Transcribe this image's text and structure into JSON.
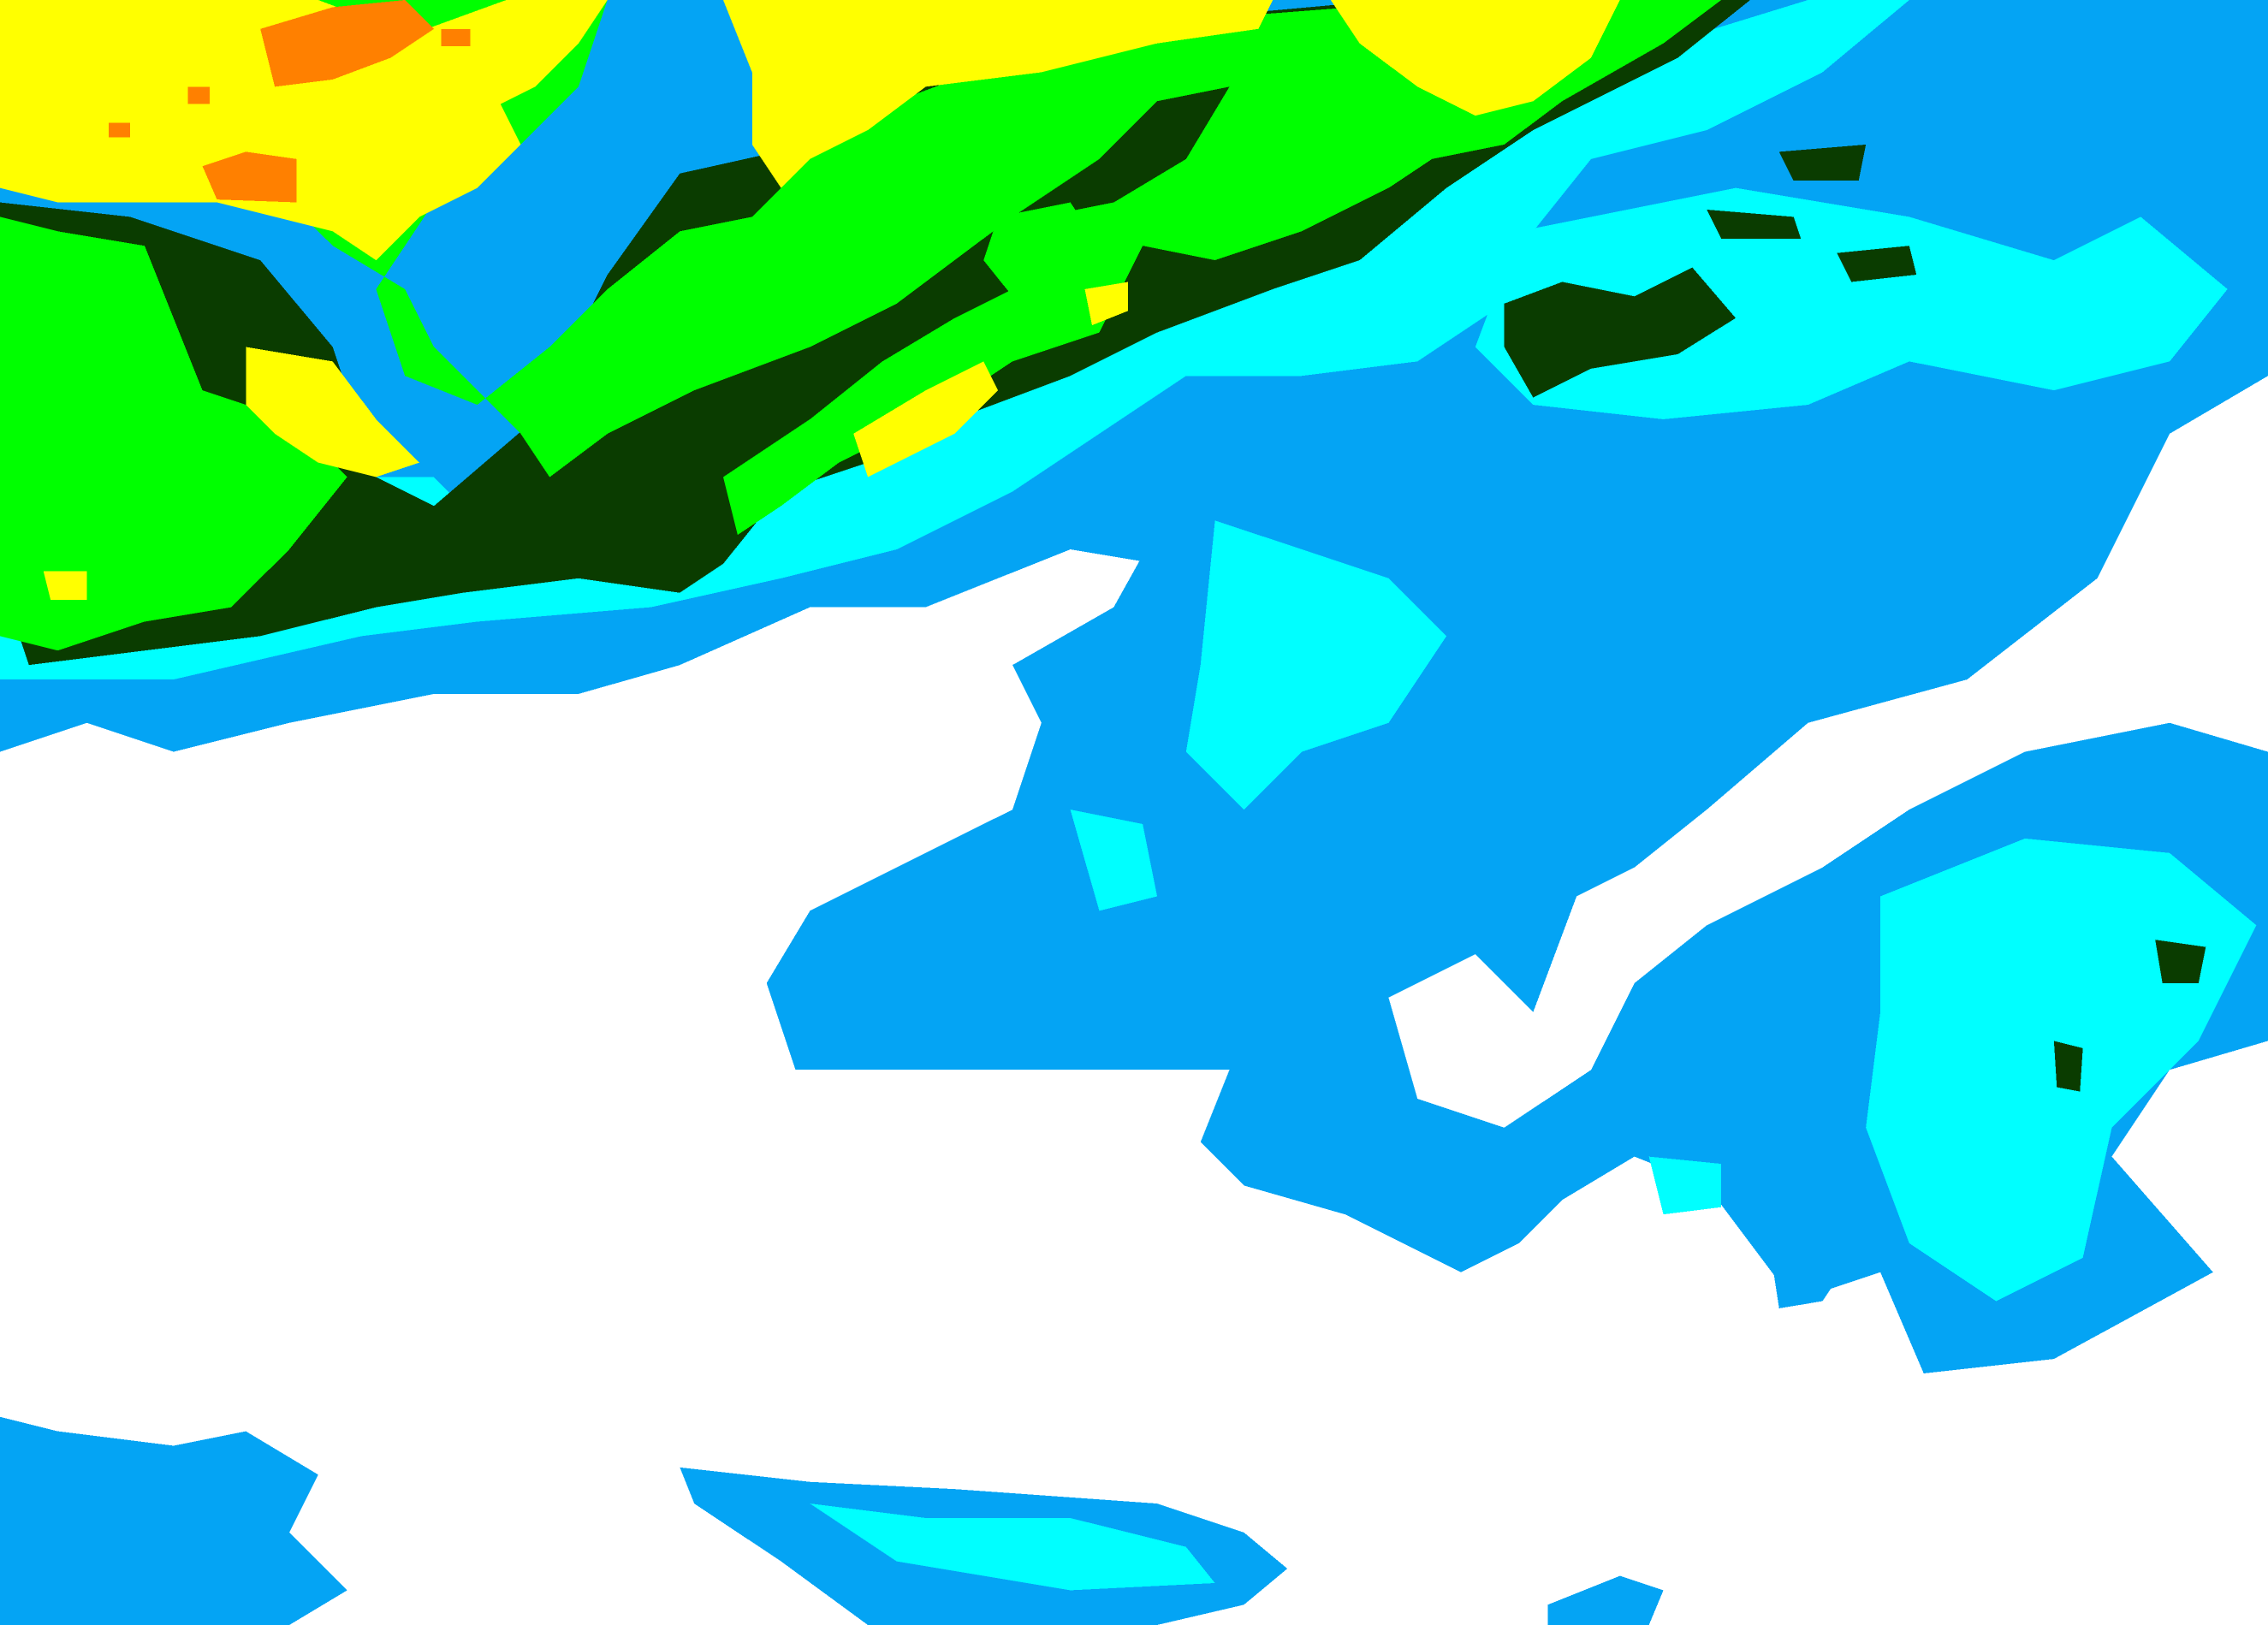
{
  "map": {
    "type": "precipitation-intensity-raster",
    "background_color": "#ffffff",
    "levels": [
      {
        "name": "level-1",
        "color": "#04a4f4"
      },
      {
        "name": "level-2",
        "color": "#00ffff"
      },
      {
        "name": "level-3",
        "color": "#0a3c00"
      },
      {
        "name": "level-4",
        "color": "#00ff00"
      },
      {
        "name": "level-5",
        "color": "#ffff00"
      },
      {
        "name": "level-6",
        "color": "#ff8000"
      }
    ]
  }
}
